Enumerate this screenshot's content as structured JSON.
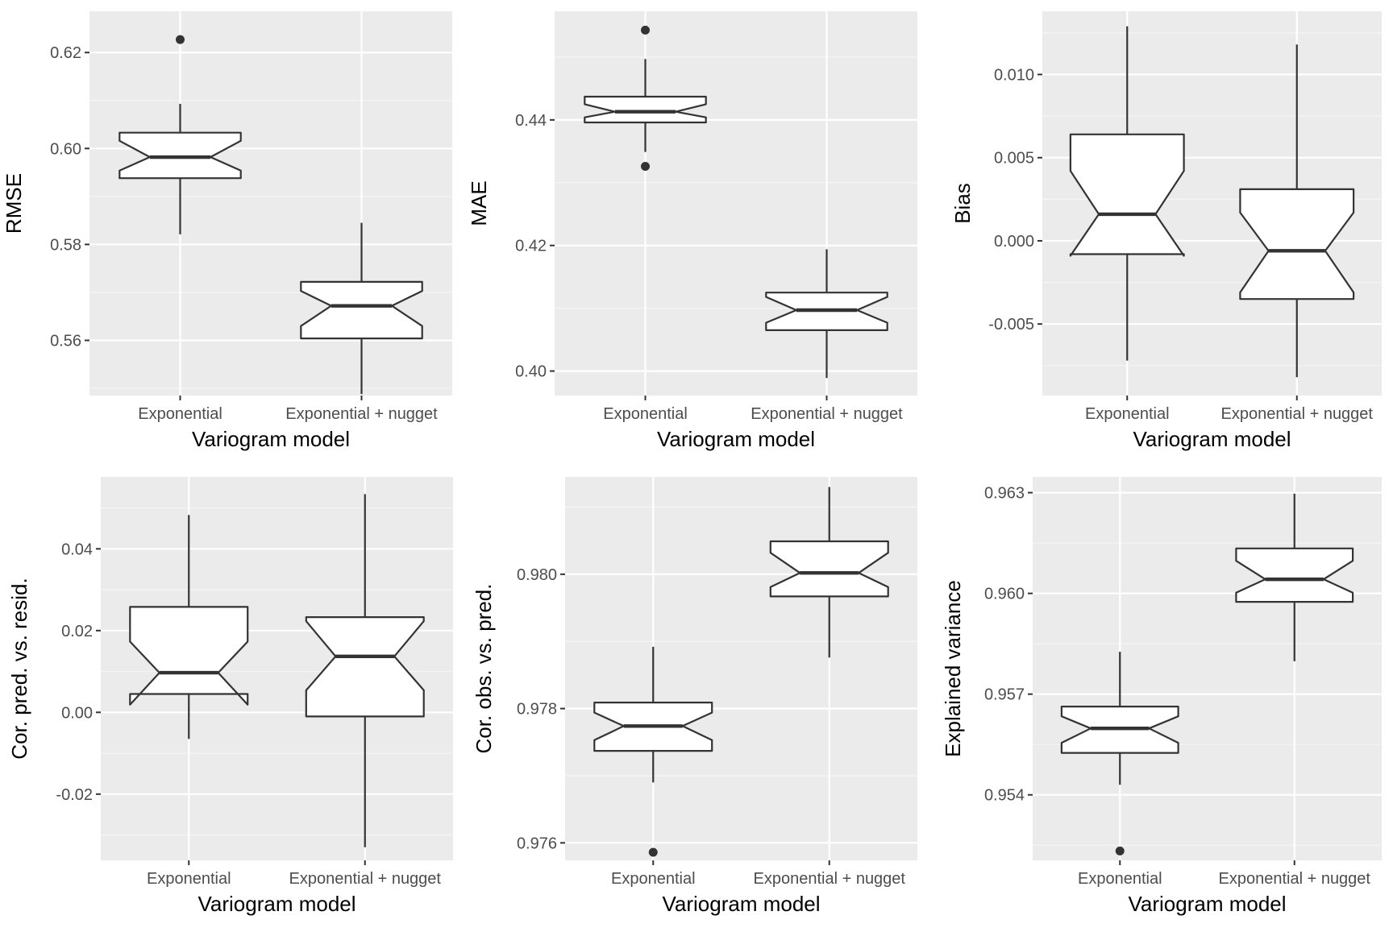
{
  "figure": {
    "layout": "2x3 grid of notched box plots",
    "colors": {
      "panel_bg": "#ebebeb",
      "grid_major": "#ffffff",
      "grid_minor": "#f5f5f5",
      "box_fill": "#ffffff",
      "box_line": "#333333",
      "tick_text": "#4d4d4d",
      "title_text": "#000000"
    }
  },
  "chart_data": [
    {
      "type": "boxplot",
      "notched": true,
      "xlabel": "Variogram model",
      "ylabel": "RMSE",
      "categories": [
        "Exponential",
        "Exponential + nugget"
      ],
      "ylim": [
        0.5485,
        0.6286
      ],
      "yticks": [
        0.56,
        0.58,
        0.6,
        0.62
      ],
      "ytick_labels": [
        "0.56",
        "0.58",
        "0.60",
        "0.62"
      ],
      "boxes": [
        {
          "lower_whisker": 0.5821,
          "q1": 0.5938,
          "median": 0.5982,
          "q3": 0.6033,
          "upper_whisker": 0.6093,
          "notch_low": 0.5954,
          "notch_high": 0.6016,
          "outliers": [
            0.6227
          ]
        },
        {
          "lower_whisker": 0.5488,
          "q1": 0.5604,
          "median": 0.5672,
          "q3": 0.5722,
          "upper_whisker": 0.5845,
          "notch_low": 0.563,
          "notch_high": 0.5703,
          "outliers": []
        }
      ]
    },
    {
      "type": "boxplot",
      "notched": true,
      "xlabel": "Variogram model",
      "ylabel": "MAE",
      "categories": [
        "Exponential",
        "Exponential + nugget"
      ],
      "ylim": [
        0.3961,
        0.4573
      ],
      "yticks": [
        0.4,
        0.42,
        0.44
      ],
      "ytick_labels": [
        "0.40",
        "0.42",
        "0.44"
      ],
      "boxes": [
        {
          "lower_whisker": 0.4349,
          "q1": 0.4396,
          "median": 0.4413,
          "q3": 0.4437,
          "upper_whisker": 0.4497,
          "notch_low": 0.4404,
          "notch_high": 0.4425,
          "outliers": [
            0.4326,
            0.4543
          ]
        },
        {
          "lower_whisker": 0.3989,
          "q1": 0.4065,
          "median": 0.4097,
          "q3": 0.4125,
          "upper_whisker": 0.4194,
          "notch_low": 0.4077,
          "notch_high": 0.4118,
          "outliers": []
        }
      ]
    },
    {
      "type": "boxplot",
      "notched": true,
      "xlabel": "Variogram model",
      "ylabel": "Bias",
      "categories": [
        "Exponential",
        "Exponential + nugget"
      ],
      "ylim": [
        -0.0093,
        0.0138
      ],
      "yticks": [
        -0.005,
        0.0,
        0.005,
        0.01
      ],
      "ytick_labels": [
        "-0.005",
        "0.000",
        "0.005",
        "0.010"
      ],
      "boxes": [
        {
          "lower_whisker": -0.0072,
          "q1": -0.0008,
          "median": 0.0016,
          "q3": 0.0064,
          "upper_whisker": 0.0129,
          "notch_low": -0.0009,
          "notch_high": 0.0042,
          "outliers": []
        },
        {
          "lower_whisker": -0.0082,
          "q1": -0.0035,
          "median": -0.0006,
          "q3": 0.0031,
          "upper_whisker": 0.0118,
          "notch_low": -0.0031,
          "notch_high": 0.0017,
          "outliers": []
        }
      ]
    },
    {
      "type": "boxplot",
      "notched": true,
      "xlabel": "Variogram model",
      "ylabel": "Cor. pred. vs. resid.",
      "categories": [
        "Exponential",
        "Exponential + nugget"
      ],
      "ylim": [
        -0.0362,
        0.0576
      ],
      "yticks": [
        -0.02,
        0.0,
        0.02,
        0.04
      ],
      "ytick_labels": [
        "-0.02",
        "0.00",
        "0.02",
        "0.04"
      ],
      "boxes": [
        {
          "lower_whisker": -0.0065,
          "q1": 0.0045,
          "median": 0.0097,
          "q3": 0.0258,
          "upper_whisker": 0.0483,
          "notch_low": 0.0019,
          "notch_high": 0.0173,
          "outliers": []
        },
        {
          "lower_whisker": -0.033,
          "q1": -0.001,
          "median": 0.0137,
          "q3": 0.0233,
          "upper_whisker": 0.0534,
          "notch_low": 0.0054,
          "notch_high": 0.0223,
          "outliers": []
        }
      ]
    },
    {
      "type": "boxplot",
      "notched": true,
      "xlabel": "Variogram model",
      "ylabel": "Cor. obs. vs. pred.",
      "categories": [
        "Exponential",
        "Exponential + nugget"
      ],
      "ylim": [
        0.97574,
        0.98145
      ],
      "yticks": [
        0.976,
        0.978,
        0.98
      ],
      "ytick_labels": [
        "0.976",
        "0.978",
        "0.980"
      ],
      "boxes": [
        {
          "lower_whisker": 0.9769,
          "q1": 0.97737,
          "median": 0.97774,
          "q3": 0.97809,
          "upper_whisker": 0.97892,
          "notch_low": 0.97753,
          "notch_high": 0.97794,
          "outliers": [
            0.97586
          ]
        },
        {
          "lower_whisker": 0.97876,
          "q1": 0.97967,
          "median": 0.98002,
          "q3": 0.98049,
          "upper_whisker": 0.9813,
          "notch_low": 0.97981,
          "notch_high": 0.98032,
          "outliers": []
        }
      ]
    },
    {
      "type": "boxplot",
      "notched": true,
      "xlabel": "Variogram model",
      "ylabel": "Explained variance",
      "categories": [
        "Exponential",
        "Exponential + nugget"
      ],
      "ylim": [
        0.95205,
        0.96347
      ],
      "yticks": [
        0.954,
        0.957,
        0.96,
        0.963
      ],
      "ytick_labels": [
        "0.954",
        "0.957",
        "0.960",
        "0.963"
      ],
      "boxes": [
        {
          "lower_whisker": 0.9543,
          "q1": 0.95525,
          "median": 0.95598,
          "q3": 0.95663,
          "upper_whisker": 0.95826,
          "notch_low": 0.95555,
          "notch_high": 0.95634,
          "outliers": [
            0.95233
          ]
        },
        {
          "lower_whisker": 0.95798,
          "q1": 0.95975,
          "median": 0.96042,
          "q3": 0.96134,
          "upper_whisker": 0.96297,
          "notch_low": 0.96002,
          "notch_high": 0.96097,
          "outliers": []
        }
      ]
    }
  ]
}
